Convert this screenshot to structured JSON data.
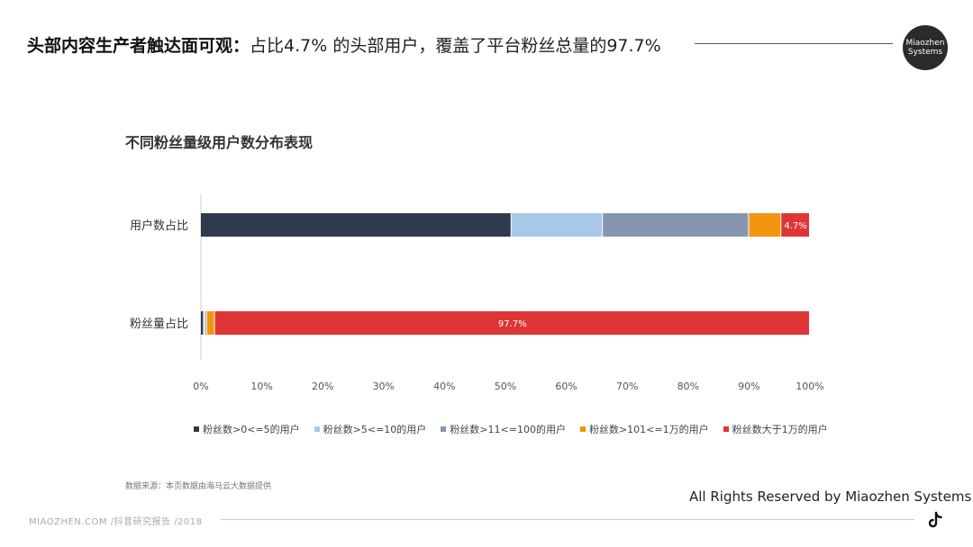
{
  "header": {
    "title_bold": "头部内容生产者触达面可观：",
    "title_rest": "占比4.7% 的头部用户，覆盖了平台粉丝总量的97.7%",
    "logo_line1": "Miaozhen",
    "logo_line2": "Systems"
  },
  "chart_data": {
    "type": "bar",
    "orientation": "horizontal",
    "stacked": true,
    "title": "不同粉丝量级用户数分布表现",
    "categories": [
      "用户数占比",
      "粉丝量占比"
    ],
    "series": [
      {
        "name": "粉丝数>0<=5的用户",
        "color": "#2f3a4c",
        "values": [
          51.0,
          0.5
        ]
      },
      {
        "name": "粉丝数>5<=10的用户",
        "color": "#a9c8e8",
        "values": [
          15.0,
          0.2
        ]
      },
      {
        "name": "粉丝数>11<=100的用户",
        "color": "#8496b0",
        "values": [
          24.0,
          0.3
        ]
      },
      {
        "name": "粉丝数>101<=1万的用户",
        "color": "#f2950f",
        "values": [
          5.3,
          1.3
        ]
      },
      {
        "name": "粉丝数大于1万的用户",
        "color": "#e03537",
        "values": [
          4.7,
          97.7
        ]
      }
    ],
    "data_labels": [
      {
        "category": "用户数占比",
        "series": "粉丝数大于1万的用户",
        "text": "4.7%"
      },
      {
        "category": "粉丝量占比",
        "series": "粉丝数大于1万的用户",
        "text": "97.7%"
      }
    ],
    "xlim": [
      0,
      100
    ],
    "xticks": [
      "0%",
      "10%",
      "20%",
      "30%",
      "40%",
      "50%",
      "60%",
      "70%",
      "80%",
      "90%",
      "100%"
    ],
    "grid": false,
    "legend_position": "bottom"
  },
  "source_note": "数据来源：本页数据由海马云大数据提供",
  "rights": "All Rights Reserved by Miaozhen Systems",
  "footer_text": "MIAOZHEN.COM /抖音研究报告 /2018",
  "icons": {
    "brand": "tiktok-icon"
  }
}
